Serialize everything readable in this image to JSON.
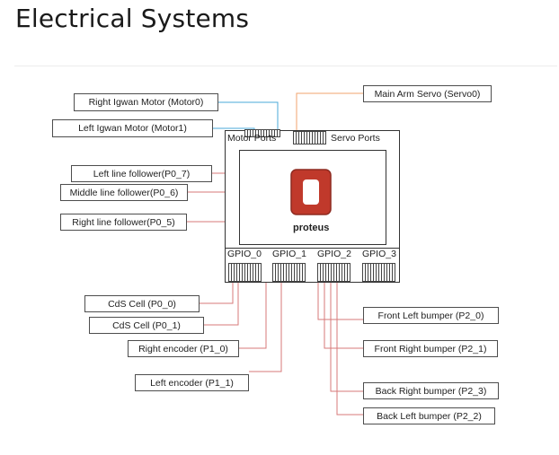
{
  "page": {
    "title": "Electrical Systems"
  },
  "diagram": {
    "labels": {
      "right_igwan_motor": "Right Igwan Motor (Motor0)",
      "left_igwan_motor": "Left Igwan Motor (Motor1)",
      "main_arm_servo": "Main Arm Servo (Servo0)",
      "left_line_follower": "Left line follower(P0_7)",
      "middle_line_follower": "Middle line follower(P0_6)",
      "right_line_follower": "Right line follower(P0_5)",
      "cds_cell_0": "CdS Cell (P0_0)",
      "cds_cell_1": "CdS Cell (P0_1)",
      "right_encoder": "Right encoder (P1_0)",
      "left_encoder": "Left encoder (P1_1)",
      "front_left_bumper": "Front Left bumper (P2_0)",
      "front_right_bumper": "Front Right bumper (P2_1)",
      "back_right_bumper": "Back Right bumper (P2_3)",
      "back_left_bumper": "Back Left bumper (P2_2)"
    },
    "board": {
      "motor_ports": "Motor Ports",
      "servo_ports": "Servo Ports",
      "gpio": [
        "GPIO_0",
        "GPIO_1",
        "GPIO_2",
        "GPIO_3"
      ],
      "logo_text": "proteus"
    },
    "colors": {
      "motor_wire": "#4aa8d8",
      "servo_wire": "#f0a36e",
      "signal_wire": "#d77a7a",
      "logo_red": "#c0392b"
    }
  }
}
